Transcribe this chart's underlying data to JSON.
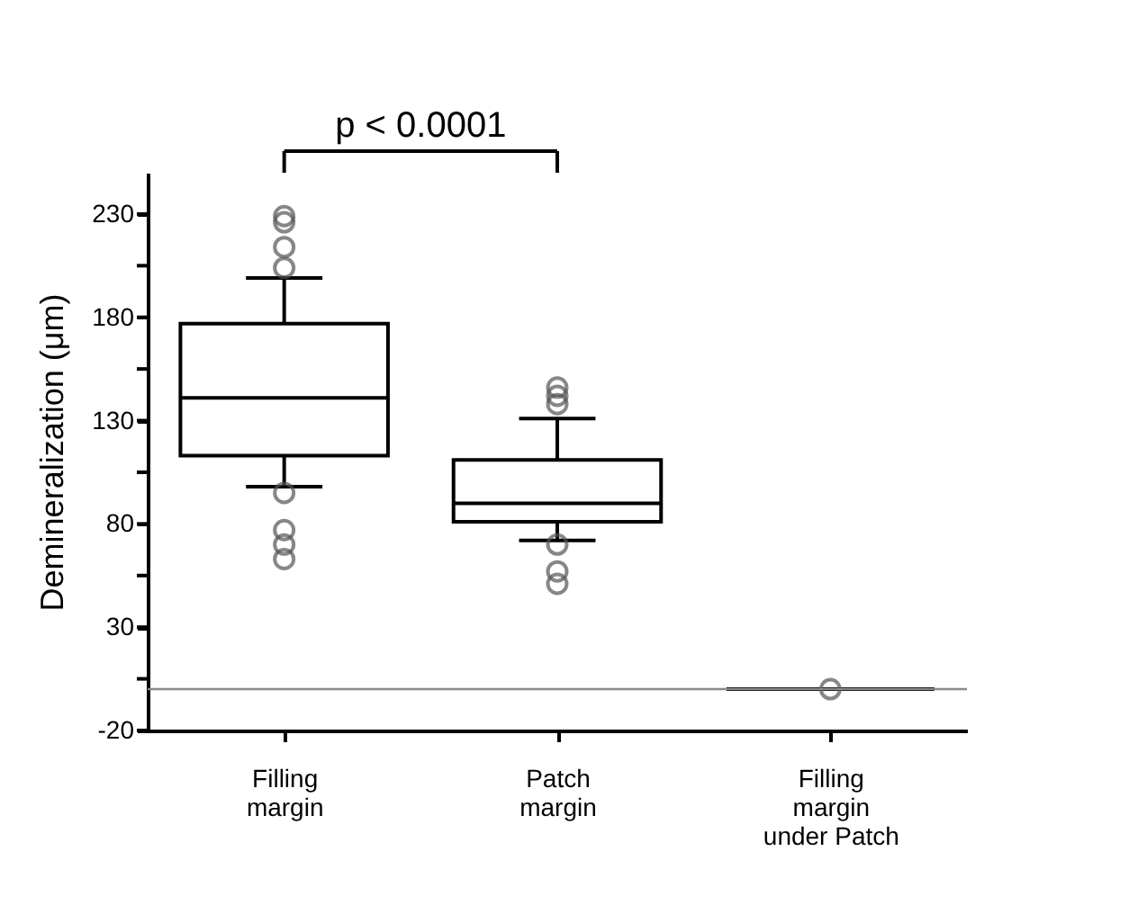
{
  "chart_data": {
    "type": "box",
    "ylabel": "Demineralization (μm)",
    "categories": [
      "Filling margin",
      "Patch margin",
      "Filling margin under Patch"
    ],
    "boxes": [
      {
        "low": 98,
        "q1": 113,
        "median": 141,
        "q3": 177,
        "high": 199,
        "outliers": [
          229,
          226,
          214,
          204,
          95,
          77,
          70,
          63
        ]
      },
      {
        "low": 72,
        "q1": 81,
        "median": 90,
        "q3": 111,
        "high": 131,
        "outliers": [
          146,
          142,
          138,
          70,
          57,
          51
        ]
      },
      {
        "low": 0,
        "q1": 0,
        "median": 0,
        "q3": 0,
        "high": 0,
        "outliers": [
          0
        ]
      }
    ],
    "ylim": [
      -20,
      250
    ],
    "yticks": [
      -20,
      {
        "value": 5,
        "label": null
      },
      30,
      {
        "value": 55,
        "label": null
      },
      80,
      {
        "value": 105,
        "label": null
      },
      130,
      {
        "value": 155,
        "label": null
      },
      180,
      {
        "value": 205,
        "label": null
      },
      230
    ],
    "ref_lines": [
      {
        "axis": "y",
        "value": 0,
        "color": "#888888"
      }
    ],
    "annotations": [
      "p < 0.0001"
    ],
    "grid": false
  }
}
